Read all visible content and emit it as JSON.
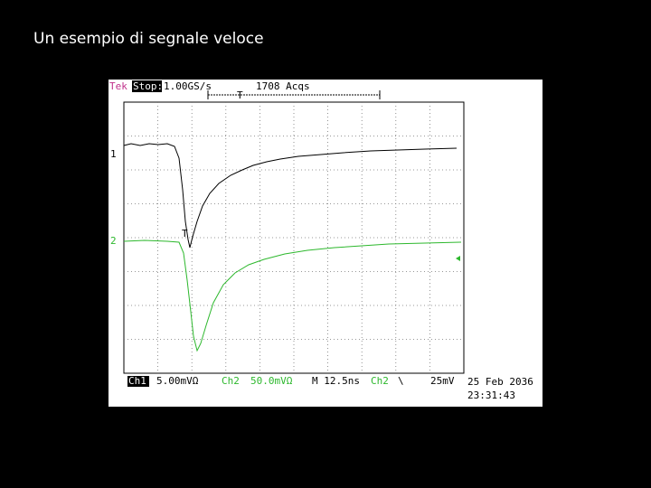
{
  "slide": {
    "title": "Un esempio di segnale veloce"
  },
  "scope": {
    "header": {
      "brand": "Tek",
      "state": "Stop:",
      "sample_rate": "1.00GS/s",
      "acquisitions": "1708 Acqs",
      "trigger_marker": "T"
    },
    "markers": {
      "ch1": "1",
      "ch2": "2",
      "trigger_point": "T"
    },
    "footer": {
      "ch1_label": "Ch1",
      "ch1_scale": "5.00mVΩ",
      "ch2_label": "Ch2",
      "ch2_scale": "50.0mVΩ",
      "timebase": "M 12.5ns",
      "trigger_source": "Ch2",
      "trigger_slope": "\\",
      "trigger_level": "25mV",
      "date": "25 Feb 2036",
      "time": "23:31:43"
    }
  }
}
